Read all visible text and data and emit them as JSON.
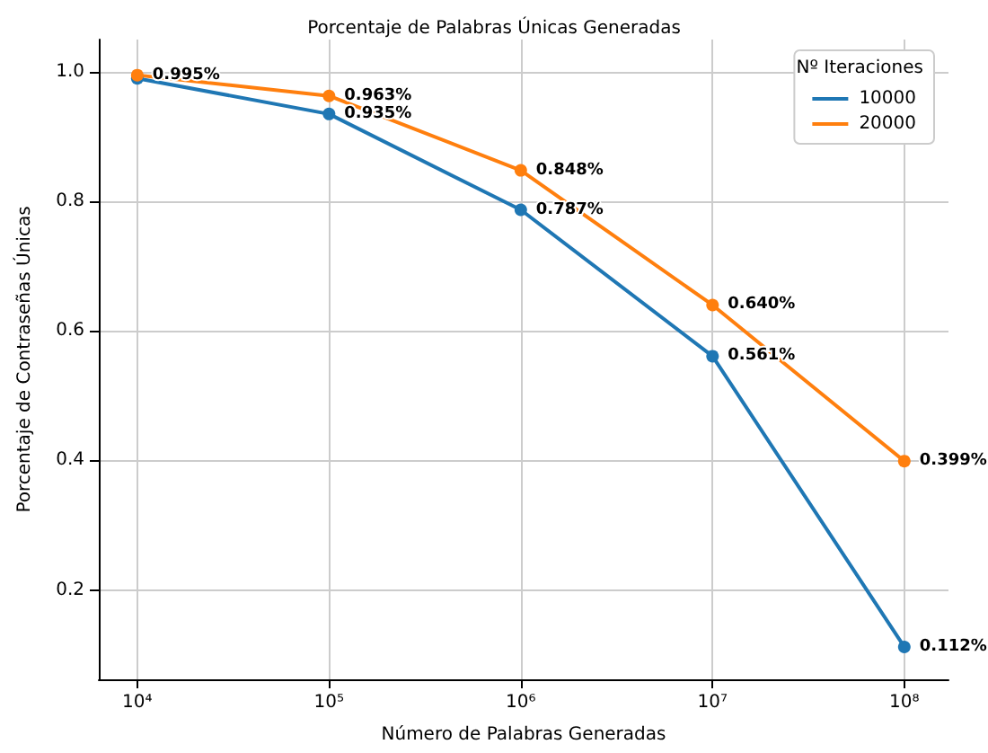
{
  "chart_data": {
    "type": "line",
    "title": "Porcentaje de Palabras Únicas Generadas",
    "xlabel": "Número de Palabras Generadas",
    "ylabel": "Porcentaje de Contraseñas Únicas",
    "legend_title": "Nº Iteraciones",
    "x": [
      10000,
      100000,
      1000000,
      10000000,
      100000000
    ],
    "series": [
      {
        "name": "10000",
        "color": "#1f77b4",
        "values": [
          0.99,
          0.935,
          0.787,
          0.561,
          0.112
        ],
        "value_labels": [
          null,
          "0.935%",
          "0.787%",
          "0.561%",
          "0.112%"
        ]
      },
      {
        "name": "20000",
        "color": "#ff7f0e",
        "values": [
          0.995,
          0.963,
          0.848,
          0.64,
          0.399
        ],
        "value_labels": [
          "0.995%",
          "0.963%",
          "0.848%",
          "0.640%",
          "0.399%"
        ]
      }
    ],
    "log": "x",
    "xlim": [
      6300,
      170000000
    ],
    "xticks": [
      {
        "value": 10000,
        "label": "10⁴"
      },
      {
        "value": 100000,
        "label": "10⁵"
      },
      {
        "value": 1000000,
        "label": "10⁶"
      },
      {
        "value": 10000000,
        "label": "10⁷"
      },
      {
        "value": 100000000,
        "label": "10⁸"
      }
    ],
    "ylim": [
      0.062,
      1.05
    ],
    "yticks": [
      0.2,
      0.4,
      0.6,
      0.8,
      {
        "value": 1,
        "label": "1.0"
      }
    ],
    "grid": true,
    "legend": "top right",
    "marker": "circle",
    "line_style": "solid"
  }
}
